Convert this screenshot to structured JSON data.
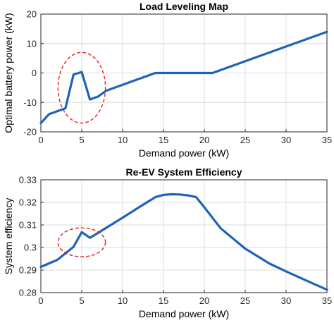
{
  "colors": {
    "series": "#1f63b8",
    "annotation": "#e0231b",
    "axis": "#262626"
  },
  "chart_data": [
    {
      "type": "line",
      "title": "Load Leveling Map",
      "xlabel": "Demand power (kW)",
      "ylabel": "Optimal battery power (kW)",
      "xlim": [
        0,
        35
      ],
      "ylim": [
        -20,
        20
      ],
      "grid": true,
      "xticks": [
        0,
        5,
        10,
        15,
        20,
        25,
        30,
        35
      ],
      "yticks": [
        -20,
        -10,
        0,
        10,
        20
      ],
      "series": [
        {
          "x": [
            0,
            1,
            3,
            4,
            5,
            6,
            7,
            8,
            14,
            21,
            35
          ],
          "y": [
            -17,
            -14,
            -12,
            -0.5,
            0.3,
            -9,
            -8,
            -6,
            0,
            0,
            14
          ]
        }
      ],
      "annotation": {
        "shape": "dashed-ellipse",
        "center": [
          5,
          -5
        ],
        "rx": 2.9,
        "ry": 12
      }
    },
    {
      "type": "line",
      "title": "Re-EV System Efficiency",
      "xlabel": "Demand power (kW)",
      "ylabel": "System efficiency",
      "xlim": [
        0,
        35
      ],
      "ylim": [
        0.28,
        0.33
      ],
      "grid": true,
      "xticks": [
        0,
        5,
        10,
        15,
        20,
        25,
        30,
        35
      ],
      "yticks": [
        0.28,
        0.29,
        0.3,
        0.31,
        0.32,
        0.33
      ],
      "series": [
        {
          "x": [
            0,
            2,
            4,
            5,
            6,
            7,
            10,
            12,
            14,
            15,
            16,
            17,
            18,
            19,
            20,
            22,
            25,
            28,
            30,
            33,
            35
          ],
          "y": [
            0.2914,
            0.2945,
            0.3003,
            0.3068,
            0.3043,
            0.3065,
            0.3132,
            0.3178,
            0.3223,
            0.3233,
            0.3236,
            0.3235,
            0.3231,
            0.3223,
            0.3178,
            0.3085,
            0.2995,
            0.2928,
            0.2894,
            0.2845,
            0.2813
          ]
        }
      ],
      "annotation": {
        "shape": "dashed-ellipse",
        "center": [
          5,
          0.3023
        ],
        "rx": 2.9,
        "ry": 0.0064
      }
    }
  ]
}
